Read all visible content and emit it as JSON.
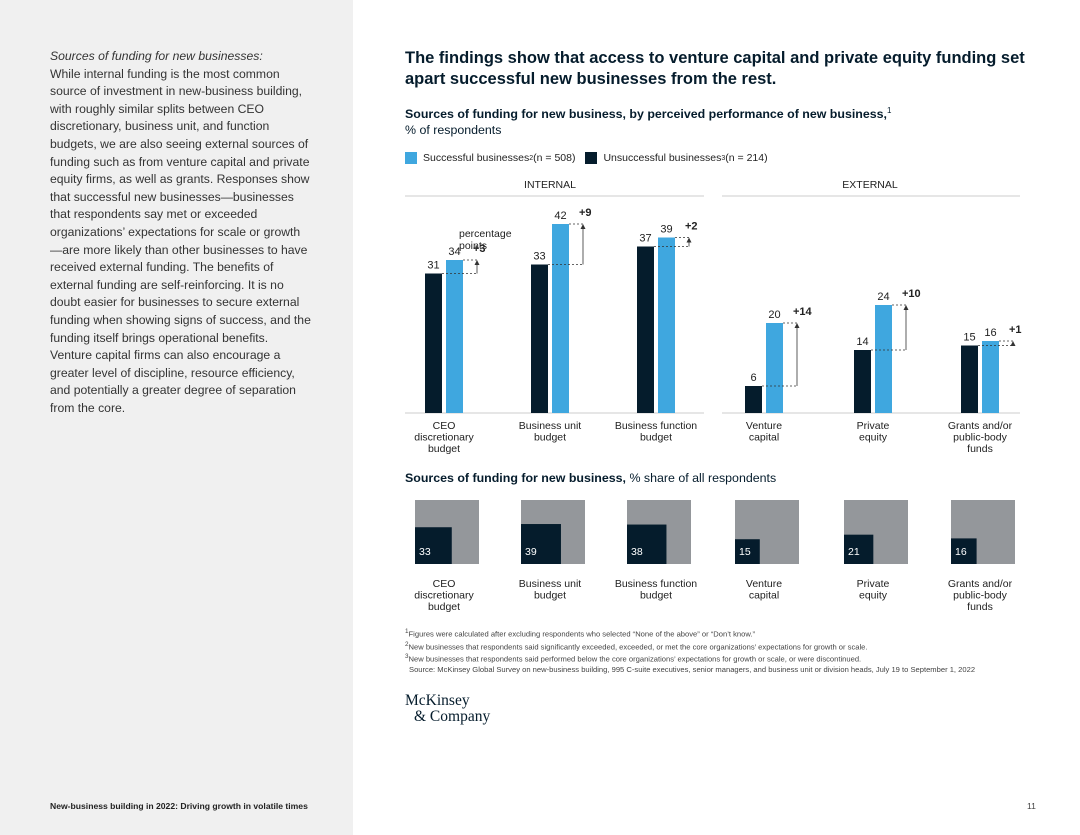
{
  "sidebar": {
    "heading": "Sources of funding for new businesses:",
    "body": "While internal funding is the most common source of investment in new-business building, with roughly similar splits between CEO discretionary, business unit, and function budgets, we are also seeing external sources of funding such as from venture capital and private equity firms, as well as grants. Responses show that successful new businesses—businesses that respondents say met or exceeded organizations’ expectations for scale or growth—are more likely than other businesses to have received external funding. The benefits of external funding are self-reinforcing. It is no doubt easier for businesses to secure external funding when showing signs of success, and the funding itself brings operational benefits. Venture capital firms can also encourage a greater level of discipline, resource efficiency, and potentially a greater degree of separation from the core."
  },
  "footer": {
    "title": "New-business building in 2022: Driving growth in volatile times",
    "page": "11"
  },
  "title": "The findings show that access to venture capital and private equity funding set apart successful new businesses from the rest.",
  "subtitle": {
    "bold": "Sources of funding for new business, by perceived performance of new business,",
    "sup": "1",
    "line2": "% of respondents"
  },
  "legend": {
    "successful": "Successful businesses",
    "successful_sup": "2",
    "successful_n": " (n = 508)",
    "unsuccessful": "Unsuccessful businesses",
    "unsuccessful_sup": "3",
    "unsuccessful_n": " (n = 214)"
  },
  "colors": {
    "successful": "#3fa7df",
    "unsuccessful": "#051c2c",
    "square_bg": "#94979b",
    "axis": "#cccccc"
  },
  "chart_data": [
    {
      "type": "bar",
      "title": "Sources of funding for new business, by perceived performance of new business",
      "ylabel": "% of respondents",
      "ylim": [
        0,
        42
      ],
      "groups": [
        "INTERNAL",
        "EXTERNAL"
      ],
      "categories": [
        "CEO discretionary budget",
        "Business unit budget",
        "Business function budget",
        "Venture capital",
        "Private equity",
        "Grants and/or public-body funds"
      ],
      "category_group": [
        "INTERNAL",
        "INTERNAL",
        "INTERNAL",
        "EXTERNAL",
        "EXTERNAL",
        "EXTERNAL"
      ],
      "series": [
        {
          "name": "Unsuccessful businesses (n = 214)",
          "values": [
            31,
            33,
            37,
            6,
            14,
            15
          ]
        },
        {
          "name": "Successful businesses (n = 508)",
          "values": [
            34,
            42,
            39,
            20,
            24,
            16
          ]
        }
      ],
      "differences": [
        "+3",
        "+9",
        "+2",
        "+14",
        "+10",
        "+1"
      ],
      "annotation": "percentage points"
    },
    {
      "type": "area",
      "title": "Sources of funding for new business, % share of all respondents",
      "categories": [
        "CEO discretionary budget",
        "Business unit budget",
        "Business function budget",
        "Venture capital",
        "Private equity",
        "Grants and/or public-body funds"
      ],
      "values": [
        33,
        39,
        38,
        15,
        21,
        16
      ]
    }
  ],
  "chart_labels": {
    "group_internal": "INTERNAL",
    "group_external": "EXTERNAL",
    "category_lines": [
      [
        "CEO",
        "discretionary",
        "budget"
      ],
      [
        "Business unit",
        "budget"
      ],
      [
        "Business function",
        "budget"
      ],
      [
        "Venture",
        "capital"
      ],
      [
        "Private",
        "equity"
      ],
      [
        "Grants and/or",
        "public-body",
        "funds"
      ]
    ],
    "annotation_lines": [
      "percentage",
      "points"
    ]
  },
  "share_subtitle": {
    "bold": "Sources of funding for new business,",
    "rest": " % share of all respondents"
  },
  "footnotes": {
    "n1": "Figures were calculated after excluding respondents who selected “None of the above” or “Don’t know.”",
    "n2": "New businesses that respondents said significantly exceeded, exceeded, or met the core organizations’ expectations for growth or scale.",
    "n3": "New businesses that respondents said performed below the core organizations’ expectations for growth or scale, or were discontinued.",
    "source": "Source: McKinsey Global Survey on new-business building, 995 C-suite executives, senior managers, and business unit or division heads, July 19 to September 1, 2022"
  },
  "logo": {
    "line1": "McKinsey",
    "line2": "& Company"
  }
}
